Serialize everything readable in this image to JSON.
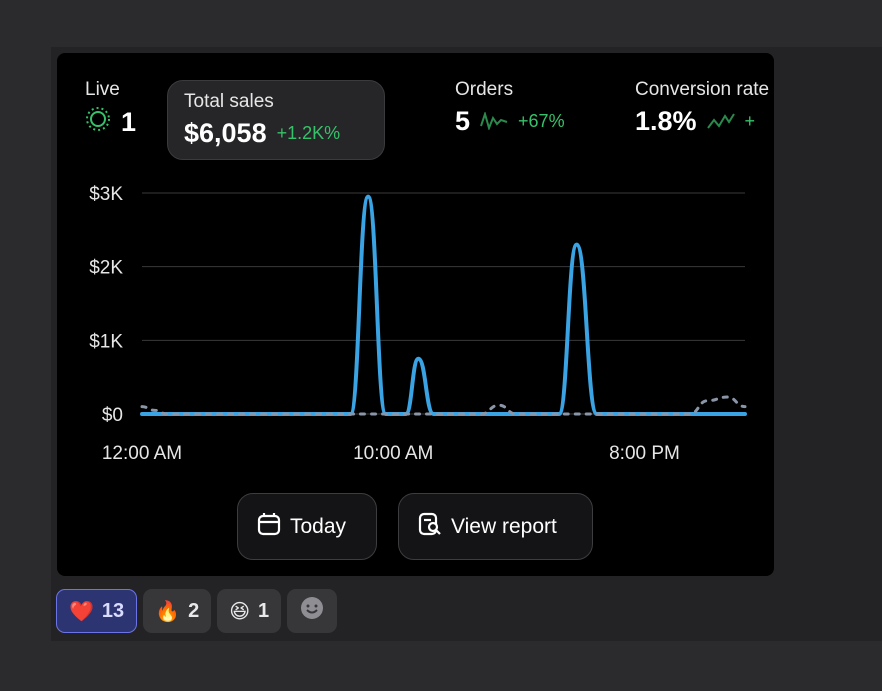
{
  "metrics": {
    "live": {
      "label": "Live",
      "value": "1"
    },
    "total_sales": {
      "label": "Total sales",
      "value": "$6,058",
      "delta": "+1.2K%"
    },
    "orders": {
      "label": "Orders",
      "value": "5",
      "delta": "+67%"
    },
    "conversion": {
      "label": "Conversion rate",
      "value": "1.8%",
      "delta": "+"
    }
  },
  "chart_data": {
    "type": "line",
    "y_tick_labels": [
      "$3K",
      "$2K",
      "$1K",
      "$0"
    ],
    "y_ticks": [
      3000,
      2000,
      1000,
      0
    ],
    "x_tick_labels": [
      "12:00 AM",
      "10:00 AM",
      "8:00 PM"
    ],
    "ylim": [
      0,
      3000
    ],
    "xlim": [
      0,
      24
    ],
    "grid": true,
    "series": [
      {
        "values": [
          [
            0,
            0
          ],
          [
            8.3,
            0
          ],
          [
            9.0,
            2950
          ],
          [
            9.7,
            0
          ],
          [
            10.5,
            0
          ],
          [
            11.0,
            750
          ],
          [
            11.6,
            0
          ],
          [
            16.6,
            0
          ],
          [
            17.3,
            2300
          ],
          [
            18.1,
            0
          ],
          [
            24,
            0
          ]
        ],
        "style": "solid",
        "color": "#3aa3e3"
      },
      {
        "values": [
          [
            0,
            100
          ],
          [
            0.5,
            50
          ],
          [
            1,
            0
          ],
          [
            13.5,
            0
          ],
          [
            14.2,
            120
          ],
          [
            14.9,
            0
          ],
          [
            21.8,
            0
          ],
          [
            22.5,
            180
          ],
          [
            23.3,
            230
          ],
          [
            24,
            100
          ]
        ],
        "style": "dashed",
        "color": "#8a96a8"
      }
    ]
  },
  "buttons": {
    "today": "Today",
    "view_report": "View report"
  },
  "reactions": [
    {
      "emoji": "❤️",
      "count": "13",
      "active": true
    },
    {
      "emoji": "🔥",
      "count": "2",
      "active": false
    },
    {
      "emoji": "😆",
      "count": "1",
      "active": false
    }
  ],
  "colors": {
    "accent_line": "#3aa3e3",
    "positive": "#36c26a",
    "selected_reaction": "#2d3472"
  }
}
